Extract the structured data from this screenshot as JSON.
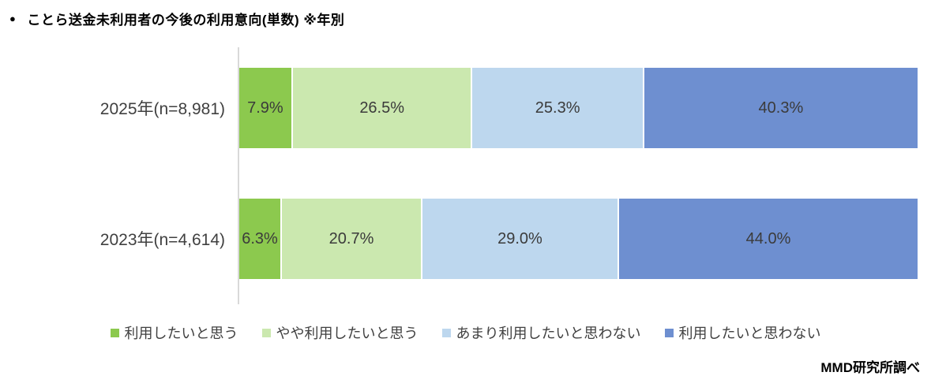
{
  "header": {
    "bullet": "●",
    "title": "ことら送金未利用者の今後の利用意向(単数) ※年別"
  },
  "chart_data": {
    "type": "bar",
    "stacked": true,
    "orientation": "horizontal",
    "categories": [
      "2025年(n=8,981)",
      "2023年(n=4,614)"
    ],
    "series": [
      {
        "name": "利用したいと思う",
        "color": "#8CC94E",
        "values": [
          7.9,
          6.3
        ]
      },
      {
        "name": "やや利用したいと思う",
        "color": "#CBE8AF",
        "values": [
          26.5,
          20.7
        ]
      },
      {
        "name": "あまり利用したいと思わない",
        "color": "#BDD7EE",
        "values": [
          25.3,
          29.0
        ]
      },
      {
        "name": "利用したいと思わない",
        "color": "#6E8FD0",
        "values": [
          40.3,
          44.0
        ]
      }
    ],
    "value_suffix": "%",
    "value_decimals": 1,
    "xlim": [
      0,
      100
    ],
    "grid": false,
    "legend_position": "bottom",
    "axis_color": "#d9d9d9",
    "label_color": "#404040"
  },
  "source": "MMD研究所調べ"
}
